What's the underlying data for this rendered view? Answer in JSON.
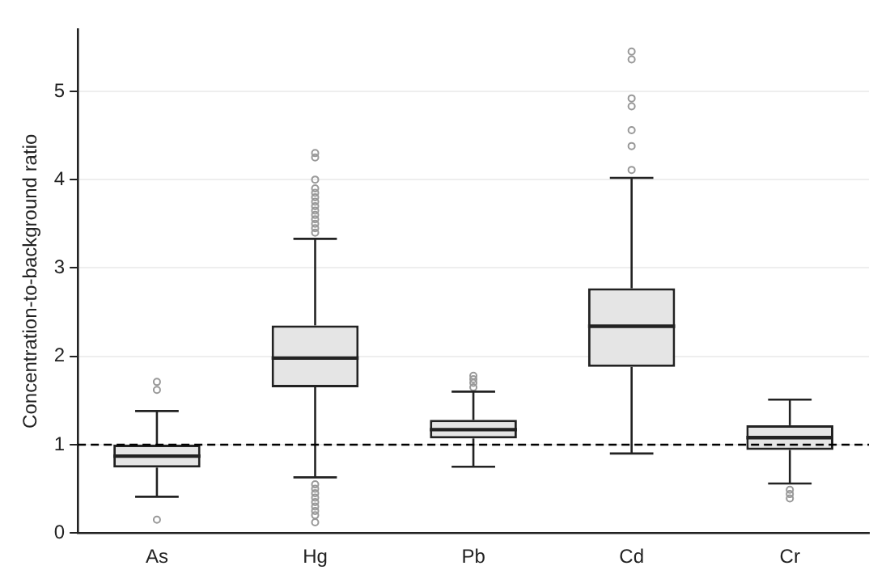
{
  "chart_data": {
    "type": "box",
    "ylabel": "Concentration-to-background ratio",
    "categories": [
      "As",
      "Hg",
      "Pb",
      "Cd",
      "Cr"
    ],
    "ylim": [
      0,
      5.7
    ],
    "yticks": [
      0,
      1,
      2,
      3,
      4,
      5
    ],
    "grid": "y",
    "marker": "circle",
    "legend": false,
    "series": [
      {
        "color": "#e5e5e5",
        "boxes": [
          {
            "low": 0.41,
            "q1": 0.74,
            "median": 0.87,
            "q3": 1.0,
            "high": 1.38,
            "outliers": [
              1.71,
              1.62,
              0.15
            ]
          },
          {
            "low": 0.63,
            "q1": 1.65,
            "median": 1.98,
            "q3": 2.35,
            "high": 3.33,
            "outliers": [
              3.4,
              3.45,
              3.5,
              3.55,
              3.6,
              3.65,
              3.7,
              3.75,
              3.8,
              3.85,
              3.9,
              4.0,
              4.25,
              4.3,
              0.55,
              0.5,
              0.45,
              0.4,
              0.35,
              0.3,
              0.25,
              0.2,
              0.12
            ]
          },
          {
            "low": 0.75,
            "q1": 1.07,
            "median": 1.17,
            "q3": 1.28,
            "high": 1.6,
            "outliers": [
              1.78,
              1.74,
              1.7,
              1.65
            ]
          },
          {
            "low": 0.9,
            "q1": 1.88,
            "median": 2.34,
            "q3": 2.77,
            "high": 4.02,
            "outliers": [
              5.45,
              5.36,
              4.92,
              4.83,
              4.56,
              4.38,
              4.11
            ]
          },
          {
            "low": 0.56,
            "q1": 0.94,
            "median": 1.08,
            "q3": 1.22,
            "high": 1.51,
            "outliers": [
              0.49,
              0.44,
              0.39
            ]
          }
        ]
      }
    ],
    "ref_lines": [
      {
        "axis": "y",
        "value": 1,
        "color": "#000000",
        "line_style": "dashed"
      }
    ]
  }
}
